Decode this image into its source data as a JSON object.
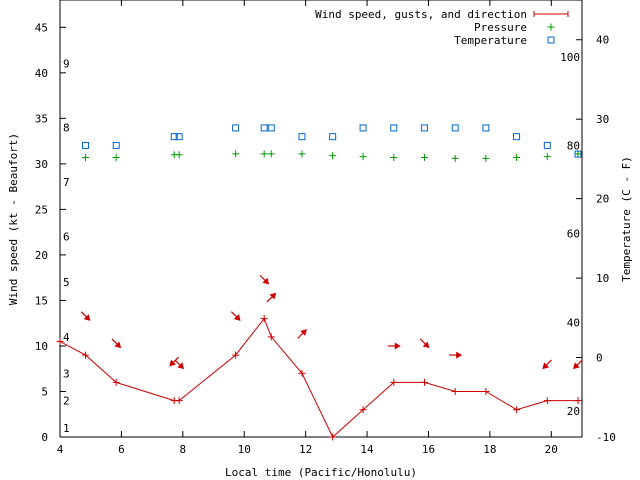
{
  "chart_data": {
    "type": "line",
    "xlabel": "Local time (Pacific/Honolulu)",
    "ylabel": "Wind speed (kt - Beaufort)",
    "y2label": "Temperature (C - F)",
    "xlim": [
      4,
      21
    ],
    "ylim": [
      0,
      48
    ],
    "y2lim": [
      -10,
      45
    ],
    "x_ticks": [
      4,
      6,
      8,
      10,
      12,
      14,
      16,
      18,
      20
    ],
    "y_ticks": [
      0,
      5,
      10,
      15,
      20,
      25,
      30,
      35,
      40,
      45
    ],
    "y2_ticks": [
      -10,
      0,
      10,
      20,
      30,
      40
    ],
    "beaufort_labels": [
      {
        "label": "1",
        "kt": 1
      },
      {
        "label": "2",
        "kt": 4
      },
      {
        "label": "3",
        "kt": 7
      },
      {
        "label": "4",
        "kt": 11
      },
      {
        "label": "5",
        "kt": 17
      },
      {
        "label": "6",
        "kt": 22
      },
      {
        "label": "7",
        "kt": 28
      },
      {
        "label": "8",
        "kt": 34
      },
      {
        "label": "9",
        "kt": 41
      }
    ],
    "fahrenheit_labels": [
      {
        "label": "20",
        "c": -6.7
      },
      {
        "label": "40",
        "c": 4.4
      },
      {
        "label": "60",
        "c": 15.6
      },
      {
        "label": "80",
        "c": 26.7
      },
      {
        "label": "100",
        "c": 37.8
      }
    ],
    "legend": [
      {
        "label": "Wind speed, gusts, and direction",
        "color": "#cc0000"
      },
      {
        "label": "Pressure",
        "color": "#009900"
      },
      {
        "label": "Temperature",
        "color": "#0066cc"
      }
    ],
    "series": [
      {
        "name": "Wind speed",
        "color": "#cc0000",
        "points": [
          {
            "x": 4.0,
            "y": 10.5
          },
          {
            "x": 4.83,
            "y": 9
          },
          {
            "x": 5.83,
            "y": 6
          },
          {
            "x": 7.72,
            "y": 4
          },
          {
            "x": 7.88,
            "y": 4
          },
          {
            "x": 9.72,
            "y": 9
          },
          {
            "x": 10.65,
            "y": 13
          },
          {
            "x": 10.88,
            "y": 11
          },
          {
            "x": 11.88,
            "y": 7
          },
          {
            "x": 12.88,
            "y": 0
          },
          {
            "x": 13.87,
            "y": 3
          },
          {
            "x": 14.87,
            "y": 6
          },
          {
            "x": 15.87,
            "y": 6
          },
          {
            "x": 16.87,
            "y": 5
          },
          {
            "x": 17.87,
            "y": 5
          },
          {
            "x": 18.87,
            "y": 3
          },
          {
            "x": 19.87,
            "y": 4
          },
          {
            "x": 20.87,
            "y": 4
          }
        ]
      },
      {
        "name": "Pressure",
        "color": "#009900",
        "points": [
          {
            "x": 4.83,
            "y": 30.7
          },
          {
            "x": 5.83,
            "y": 30.7
          },
          {
            "x": 7.72,
            "y": 31
          },
          {
            "x": 7.88,
            "y": 31
          },
          {
            "x": 9.72,
            "y": 31.1
          },
          {
            "x": 10.65,
            "y": 31.1
          },
          {
            "x": 10.88,
            "y": 31.1
          },
          {
            "x": 11.88,
            "y": 31.1
          },
          {
            "x": 12.88,
            "y": 30.9
          },
          {
            "x": 13.87,
            "y": 30.8
          },
          {
            "x": 14.87,
            "y": 30.7
          },
          {
            "x": 15.87,
            "y": 30.7
          },
          {
            "x": 16.87,
            "y": 30.6
          },
          {
            "x": 17.87,
            "y": 30.6
          },
          {
            "x": 18.87,
            "y": 30.7
          },
          {
            "x": 19.87,
            "y": 30.8
          },
          {
            "x": 20.87,
            "y": 31.1
          }
        ]
      },
      {
        "name": "Temperature",
        "color": "#0066cc",
        "points": [
          {
            "x": 4.83,
            "y": 26.7
          },
          {
            "x": 5.83,
            "y": 26.7
          },
          {
            "x": 7.72,
            "y": 27.8
          },
          {
            "x": 7.88,
            "y": 27.8
          },
          {
            "x": 9.72,
            "y": 28.9
          },
          {
            "x": 10.65,
            "y": 28.9
          },
          {
            "x": 10.88,
            "y": 28.9
          },
          {
            "x": 11.88,
            "y": 27.8
          },
          {
            "x": 12.88,
            "y": 27.8
          },
          {
            "x": 13.87,
            "y": 28.9
          },
          {
            "x": 14.87,
            "y": 28.9
          },
          {
            "x": 15.87,
            "y": 28.9
          },
          {
            "x": 16.87,
            "y": 28.9
          },
          {
            "x": 17.87,
            "y": 28.9
          },
          {
            "x": 18.87,
            "y": 27.8
          },
          {
            "x": 19.87,
            "y": 26.7
          },
          {
            "x": 20.87,
            "y": 25.6
          }
        ]
      }
    ],
    "wind_direction_arrows": [
      {
        "x": 4.83,
        "kt": 13.3,
        "deg": 135
      },
      {
        "x": 5.83,
        "kt": 10.3,
        "deg": 135
      },
      {
        "x": 7.72,
        "kt": 8.3,
        "deg": 225
      },
      {
        "x": 7.88,
        "kt": 8.0,
        "deg": 135
      },
      {
        "x": 9.72,
        "kt": 13.3,
        "deg": 135
      },
      {
        "x": 10.65,
        "kt": 17.3,
        "deg": 135
      },
      {
        "x": 10.88,
        "kt": 15.3,
        "deg": 45
      },
      {
        "x": 11.88,
        "kt": 11.3,
        "deg": 45
      },
      {
        "x": 14.87,
        "kt": 10.0,
        "deg": 90
      },
      {
        "x": 15.87,
        "kt": 10.3,
        "deg": 135
      },
      {
        "x": 16.87,
        "kt": 9.0,
        "deg": 90
      },
      {
        "x": 19.87,
        "kt": 8.0,
        "deg": 225
      },
      {
        "x": 20.87,
        "kt": 8.0,
        "deg": 225
      }
    ]
  }
}
